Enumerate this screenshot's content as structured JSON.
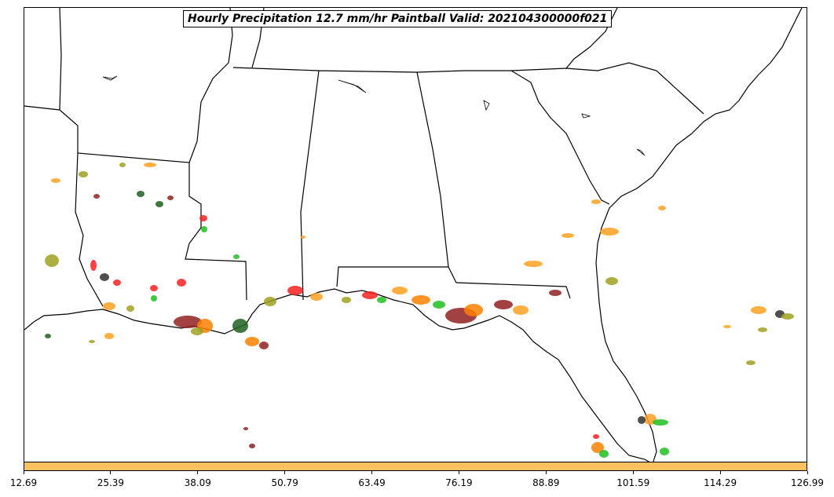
{
  "title": "Hourly Precipitation 12.7 mm/hr Paintball Valid: 202104300000f021",
  "colorbar": {
    "color": "#ffc060",
    "ticks": [
      "12.69",
      "25.39",
      "38.09",
      "50.79",
      "63.49",
      "76.19",
      "88.89",
      "101.59",
      "114.29",
      "126.99"
    ]
  },
  "member_colors": [
    "#ff2020",
    "#ffa020",
    "#a0a020",
    "#20c020",
    "#206020",
    "#902020",
    "#303030",
    "#ff8000"
  ]
}
